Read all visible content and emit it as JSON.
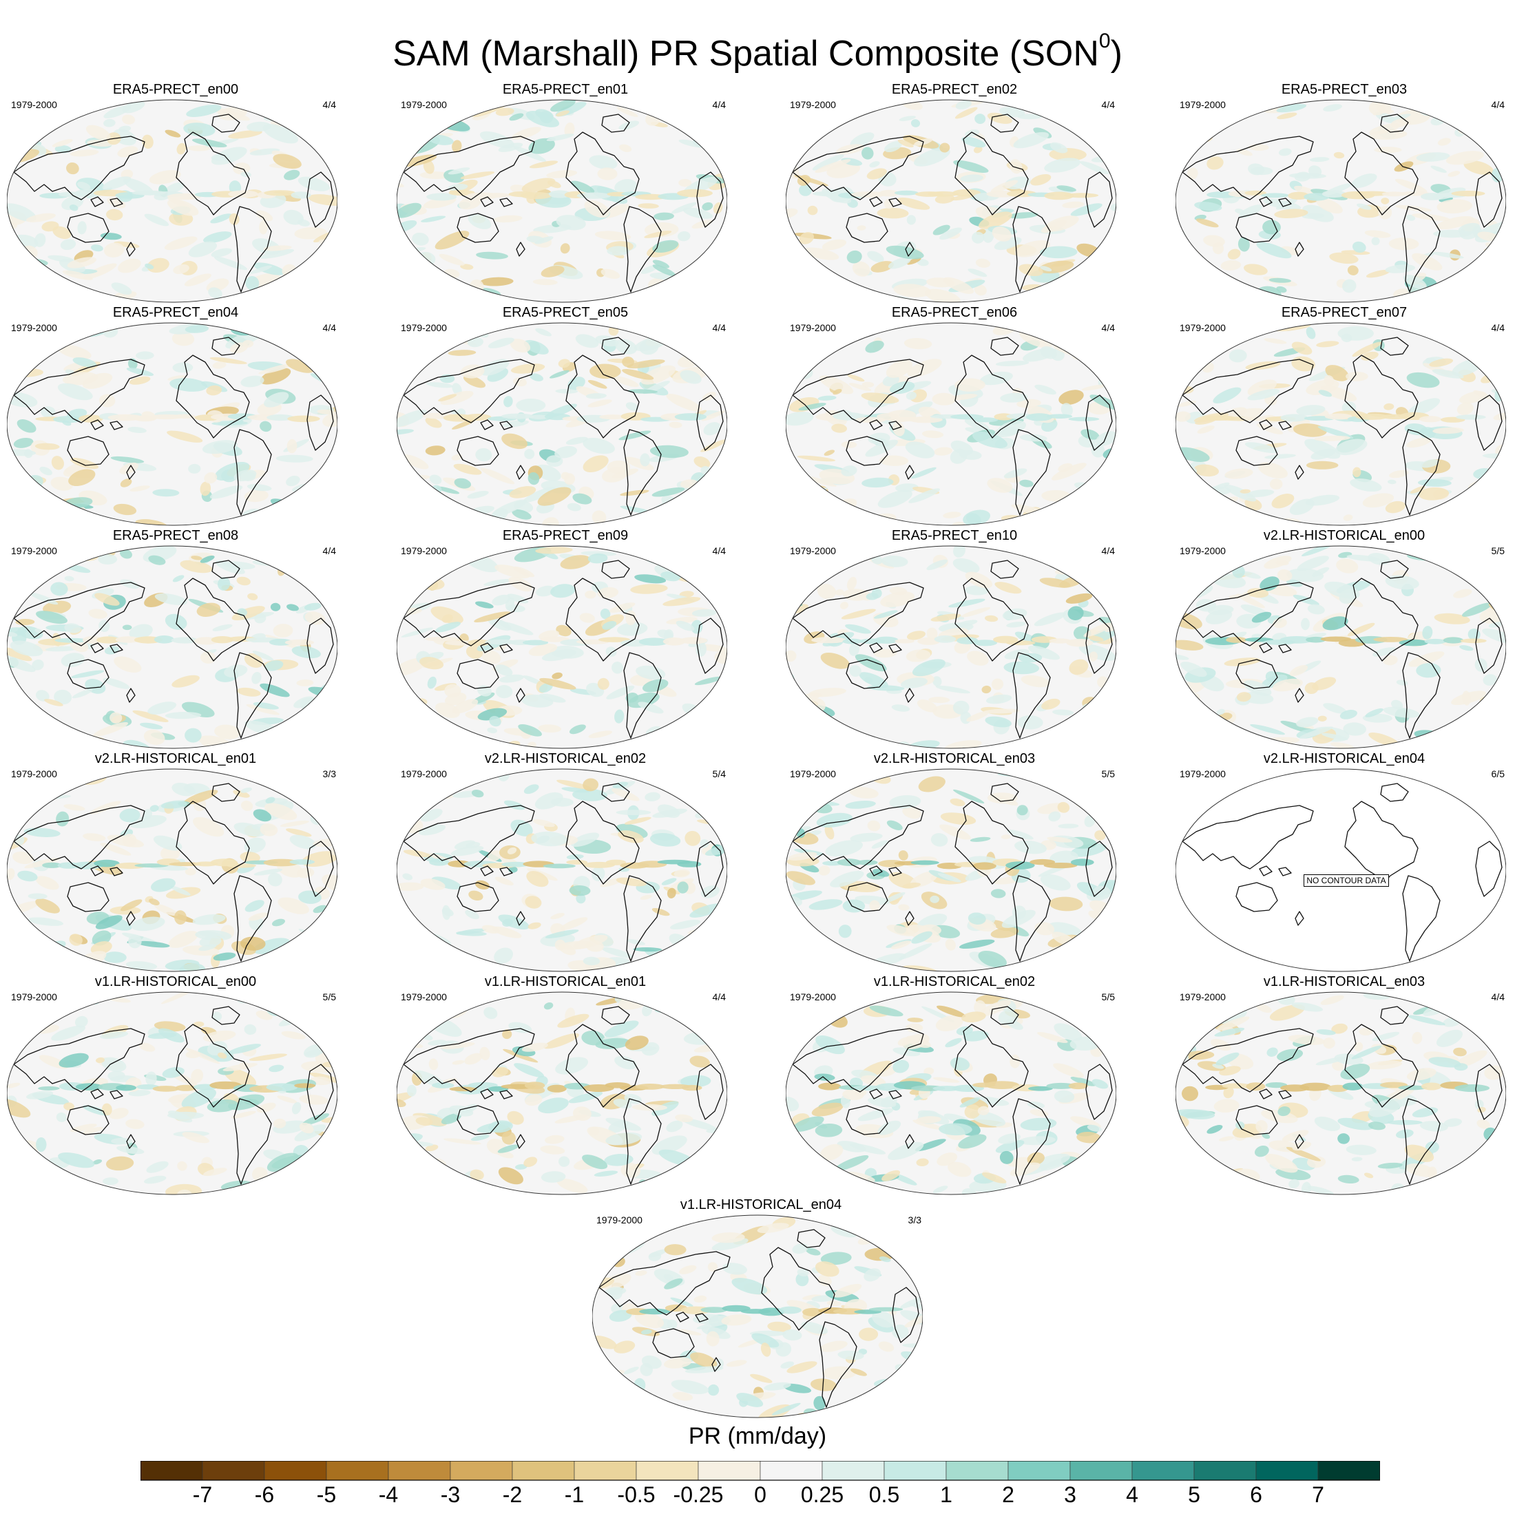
{
  "title": {
    "main": "SAM (Marshall) PR Spatial Composite (SON",
    "superscript": "0",
    "close": ")"
  },
  "panels": [
    {
      "title": "ERA5-PRECT_en00",
      "period": "1979-2000",
      "count": "4/4"
    },
    {
      "title": "ERA5-PRECT_en01",
      "period": "1979-2000",
      "count": "4/4"
    },
    {
      "title": "ERA5-PRECT_en02",
      "period": "1979-2000",
      "count": "4/4"
    },
    {
      "title": "ERA5-PRECT_en03",
      "period": "1979-2000",
      "count": "4/4"
    },
    {
      "title": "ERA5-PRECT_en04",
      "period": "1979-2000",
      "count": "4/4"
    },
    {
      "title": "ERA5-PRECT_en05",
      "period": "1979-2000",
      "count": "4/4"
    },
    {
      "title": "ERA5-PRECT_en06",
      "period": "1979-2000",
      "count": "4/4"
    },
    {
      "title": "ERA5-PRECT_en07",
      "period": "1979-2000",
      "count": "4/4"
    },
    {
      "title": "ERA5-PRECT_en08",
      "period": "1979-2000",
      "count": "4/4"
    },
    {
      "title": "ERA5-PRECT_en09",
      "period": "1979-2000",
      "count": "4/4"
    },
    {
      "title": "ERA5-PRECT_en10",
      "period": "1979-2000",
      "count": "4/4"
    },
    {
      "title": "v2.LR-HISTORICAL_en00",
      "period": "1979-2000",
      "count": "5/5"
    },
    {
      "title": "v2.LR-HISTORICAL_en01",
      "period": "1979-2000",
      "count": "3/3"
    },
    {
      "title": "v2.LR-HISTORICAL_en02",
      "period": "1979-2000",
      "count": "5/4"
    },
    {
      "title": "v2.LR-HISTORICAL_en03",
      "period": "1979-2000",
      "count": "5/5"
    },
    {
      "title": "v2.LR-HISTORICAL_en04",
      "period": "1979-2000",
      "count": "6/5",
      "no_data": "NO CONTOUR DATA"
    },
    {
      "title": "v1.LR-HISTORICAL_en00",
      "period": "1979-2000",
      "count": "5/5"
    },
    {
      "title": "v1.LR-HISTORICAL_en01",
      "period": "1979-2000",
      "count": "4/4"
    },
    {
      "title": "v1.LR-HISTORICAL_en02",
      "period": "1979-2000",
      "count": "5/5"
    },
    {
      "title": "v1.LR-HISTORICAL_en03",
      "period": "1979-2000",
      "count": "4/4"
    },
    {
      "title": "v1.LR-HISTORICAL_en04",
      "period": "1979-2000",
      "count": "3/3"
    }
  ],
  "chart_data": {
    "type": "heatmap",
    "projection": "Robinson, Pacific-centered",
    "variable": "PR",
    "colorbar": {
      "title": "PR (mm/day)",
      "levels": [
        "-7",
        "-6",
        "-5",
        "-4",
        "-3",
        "-2",
        "-1",
        "-0.5",
        "-0.25",
        "0",
        "0.25",
        "0.5",
        "1",
        "2",
        "3",
        "4",
        "5",
        "6",
        "7"
      ],
      "colors": [
        "#543005",
        "#6d3f0c",
        "#8c510a",
        "#a8701f",
        "#bf8b3b",
        "#d4aa5e",
        "#dfc27d",
        "#ead49c",
        "#f3e4bd",
        "#f6f0e3",
        "#f5f5f5",
        "#dff0ec",
        "#c7eae5",
        "#a6dccf",
        "#80cdc1",
        "#5ab4a7",
        "#35978f",
        "#1a7b71",
        "#01665e",
        "#003c30"
      ]
    }
  }
}
